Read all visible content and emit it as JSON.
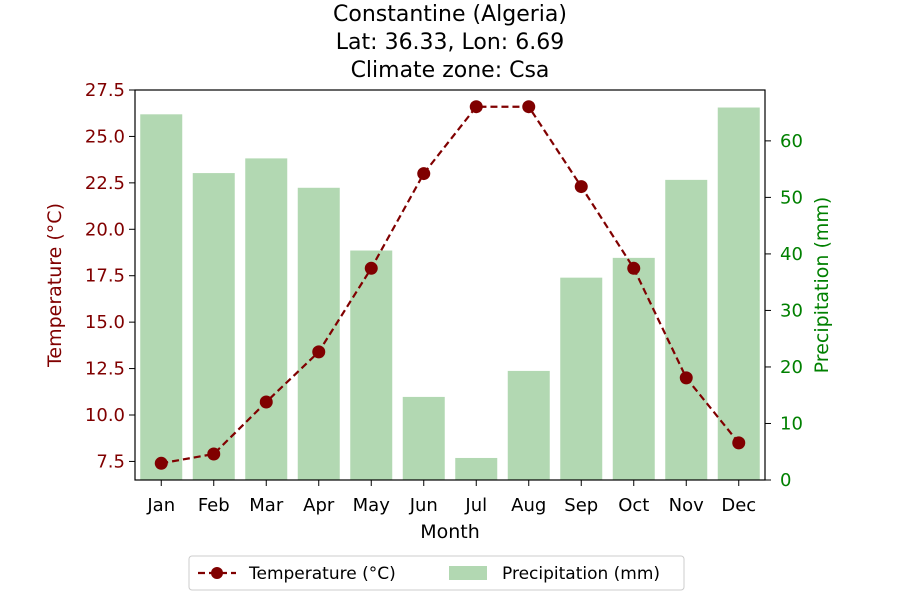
{
  "chart_data": {
    "type": "bar+line",
    "title": [
      "Constantine (Algeria)",
      "Lat: 36.33, Lon: 6.69",
      "Climate zone: Csa"
    ],
    "xlabel": "Month",
    "ylabel_left": "Temperature (°C)",
    "ylabel_right": "Precipitation (mm)",
    "categories": [
      "Jan",
      "Feb",
      "Mar",
      "Apr",
      "May",
      "Jun",
      "Jul",
      "Aug",
      "Sep",
      "Oct",
      "Nov",
      "Dec"
    ],
    "temperature": {
      "name": "Temperature (°C)",
      "color": "#800000",
      "values": [
        7.4,
        7.9,
        10.7,
        13.4,
        17.9,
        23.0,
        26.6,
        26.6,
        22.3,
        17.9,
        12.0,
        8.5
      ],
      "ylim": [
        6.5,
        27.5
      ],
      "ticks": [
        "7.5",
        "10.0",
        "12.5",
        "15.0",
        "17.5",
        "20.0",
        "22.5",
        "25.0",
        "27.5"
      ]
    },
    "precipitation": {
      "name": "Precipitation (mm)",
      "color": "#b2d8b2",
      "values": [
        64.7,
        54.3,
        56.9,
        51.7,
        40.6,
        14.7,
        3.9,
        19.3,
        35.8,
        39.3,
        53.1,
        65.9
      ],
      "ylim": [
        0,
        69
      ],
      "ticks": [
        "0",
        "10",
        "20",
        "30",
        "40",
        "50",
        "60"
      ]
    },
    "legend": {
      "placement": "bottom-center",
      "entries": [
        "Temperature (°C)",
        "Precipitation (mm)"
      ]
    }
  }
}
